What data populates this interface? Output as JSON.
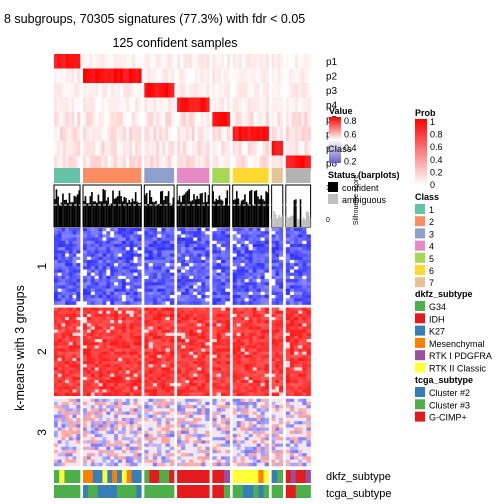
{
  "title": "8 subgroups, 70305 signatures (77.3%) with fdr < 0.05",
  "subtitle": "125 confident samples",
  "row_title": "k-means with 3 groups",
  "chart_data": {
    "type": "heatmap",
    "title": "8 subgroups, 70305 signatures (77.3%) with fdr < 0.05",
    "subtitle": "125 confident samples",
    "probability_rows": [
      "p1",
      "p2",
      "p3",
      "p4",
      "p5",
      "p6",
      "p7",
      "p8"
    ],
    "row_groups": [
      "1",
      "2",
      "3"
    ],
    "row_group_fraction": [
      0.33,
      0.38,
      0.29
    ],
    "column_groups": [
      {
        "class": "1",
        "fraction": 0.105
      },
      {
        "class": "2",
        "fraction": 0.235
      },
      {
        "class": "3",
        "fraction": 0.12
      },
      {
        "class": "4",
        "fraction": 0.13
      },
      {
        "class": "5",
        "fraction": 0.07
      },
      {
        "class": "6",
        "fraction": 0.145
      },
      {
        "class": "7",
        "fraction": 0.045
      },
      {
        "class": "8",
        "fraction": 0.1
      }
    ],
    "bottom_annotations": [
      "dkfz_subtype",
      "tcga_subtype"
    ],
    "silhouette_label": "Silhouette score",
    "silhouette_ticks": [
      "1",
      "0"
    ]
  },
  "legends": {
    "value": {
      "title": "Value",
      "ticks": [
        "0.8",
        "0.6",
        "0.4",
        "0.2"
      ],
      "colors": [
        "#ff0000",
        "#ffffff",
        "#6a5acd"
      ]
    },
    "prob": {
      "title": "Prob",
      "ticks": [
        "1",
        "0.8",
        "0.6",
        "0.4",
        "0.2",
        "0"
      ],
      "colors": [
        "#ffffff",
        "#ff0000"
      ]
    },
    "class": {
      "title": "Class",
      "items": [
        {
          "label": "1",
          "color": "#66C2A5"
        },
        {
          "label": "2",
          "color": "#FC8D62"
        },
        {
          "label": "3",
          "color": "#8DA0CB"
        },
        {
          "label": "4",
          "color": "#E78AC3"
        },
        {
          "label": "5",
          "color": "#A6D854"
        },
        {
          "label": "6",
          "color": "#FFD92F"
        },
        {
          "label": "7",
          "color": "#E5C494"
        }
      ],
      "extra_color": "#B3B3B3"
    },
    "status": {
      "title": "Status (barplots)",
      "items": [
        {
          "label": "confident",
          "color": "#000000"
        },
        {
          "label": "ambiguous",
          "color": "#BEBEBE"
        }
      ]
    },
    "dkfz": {
      "title": "dkfz_subtype",
      "items": [
        {
          "label": "G34",
          "color": "#4DAF4A"
        },
        {
          "label": "IDH",
          "color": "#E41A1C"
        },
        {
          "label": "K27",
          "color": "#377EB8"
        },
        {
          "label": "Mesenchymal",
          "color": "#FF7F00"
        },
        {
          "label": "RTK I PDGFRA",
          "color": "#984EA3"
        },
        {
          "label": "RTK II Classic",
          "color": "#FFFF33"
        }
      ]
    },
    "tcga": {
      "title": "tcga_subtype",
      "items": [
        {
          "label": "Cluster #2",
          "color": "#377EB8"
        },
        {
          "label": "Cluster #3",
          "color": "#4DAF4A"
        },
        {
          "label": "G-CIMP+",
          "color": "#E41A1C"
        }
      ]
    }
  }
}
